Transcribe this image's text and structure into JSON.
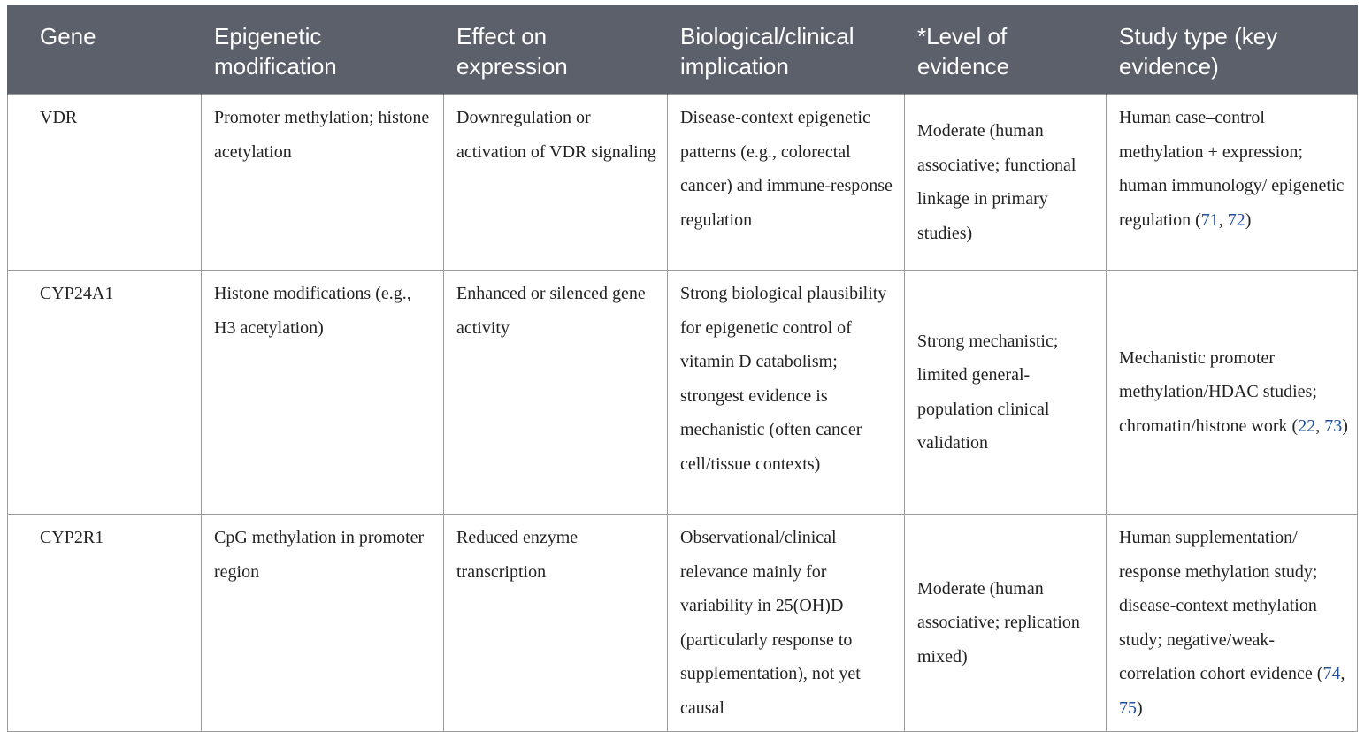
{
  "headers": [
    "Gene",
    "Epigenetic modification",
    "Effect on expression",
    "Biological/clinical implication",
    "*Level of evidence",
    "Study type (key evidence)"
  ],
  "rows": [
    {
      "gene": "VDR",
      "modification": "Promoter methylation; histone acetylation",
      "effect": "Downregulation or activation of VDR signaling",
      "implication": "Disease-context epigenetic patterns (e.g., colorectal cancer) and immune-response regulation",
      "evidence": "Moderate (human associative; functional linkage in primary studies)",
      "study_text": "Human case–control methylation + expression; human immunology/ epigenetic regulation (",
      "refs": [
        "71",
        "72"
      ]
    },
    {
      "gene": "CYP24A1",
      "modification": "Histone modifications (e.g., H3 acetylation)",
      "effect": "Enhanced or silenced gene activity",
      "implication": "Strong biological plausibility for epigenetic control of vitamin D catabolism; strongest evidence is mechanistic (often cancer cell/tissue contexts)",
      "evidence": "Strong mechanistic; limited general-population clinical validation",
      "study_text": "Mechanistic promoter methylation/HDAC studies; chromatin/histone work (",
      "refs": [
        "22",
        "73"
      ]
    },
    {
      "gene": "CYP2R1",
      "modification": "CpG methylation in promoter region",
      "effect": "Reduced enzyme transcription",
      "implication": "Observational/clinical relevance mainly for variability in 25(OH)D (particularly response to supplementation), not yet causal",
      "evidence": "Moderate (human associative; replication mixed)",
      "study_text": "Human supplementation/ response methylation study; disease-context methylation study; negative/weak-correlation cohort evidence (",
      "refs": [
        "74",
        "75"
      ]
    }
  ],
  "punct": {
    "sep": ", ",
    "close": ")"
  },
  "colors": {
    "header_bg": "#5c606a",
    "header_text": "#ffffff",
    "reference_link": "#1f4e9a",
    "border": "#9a9a9a"
  }
}
